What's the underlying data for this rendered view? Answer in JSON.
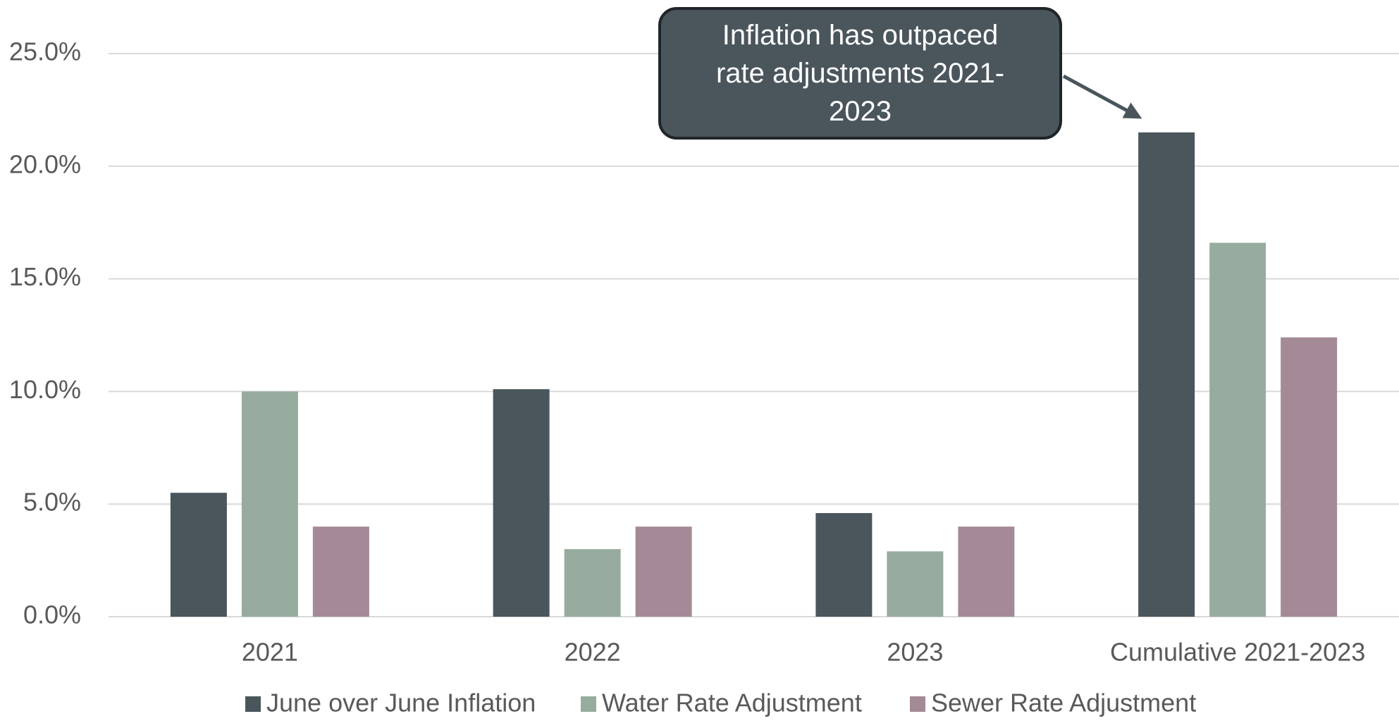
{
  "chart_data": {
    "type": "bar",
    "categories": [
      "2021",
      "2022",
      "2023",
      "Cumulative 2021-2023"
    ],
    "series": [
      {
        "name": "June over June Inflation",
        "color": "#4a555c",
        "values": [
          5.5,
          10.1,
          4.6,
          21.5
        ]
      },
      {
        "name": "Water Rate Adjustment",
        "color": "#97ac9f",
        "values": [
          10.0,
          3.0,
          2.9,
          16.6
        ]
      },
      {
        "name": "Sewer Rate Adjustment",
        "color": "#a48a96",
        "values": [
          4.0,
          4.0,
          4.0,
          12.4
        ]
      }
    ],
    "ylim": [
      0,
      25
    ],
    "yticks": [
      {
        "value": 0,
        "label": "0.0%"
      },
      {
        "value": 5,
        "label": "5.0%"
      },
      {
        "value": 10,
        "label": "10.0%"
      },
      {
        "value": 15,
        "label": "15.0%"
      },
      {
        "value": 20,
        "label": "20.0%"
      },
      {
        "value": 25,
        "label": "25.0%"
      }
    ],
    "grid": true,
    "legend": "bottom",
    "annotation": "Inflation has outpaced rate adjustments 2021-2023"
  }
}
